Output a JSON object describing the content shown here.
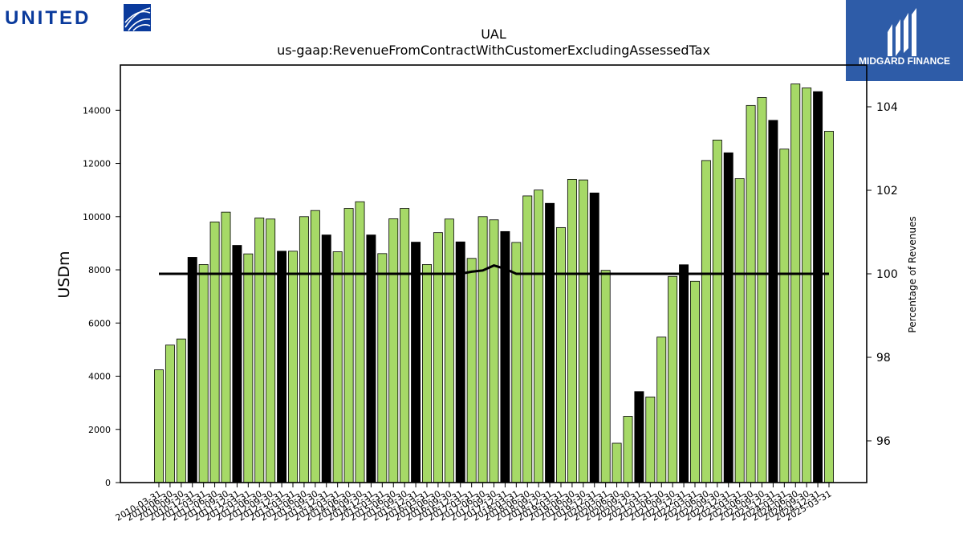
{
  "brand": {
    "left_logo_text": "UNITED",
    "right_logo_text": "MIDGARD FINANCE",
    "left_color": "#0a3a9c",
    "right_bg": "#2e5ca8"
  },
  "chart_data": {
    "type": "bar",
    "title": "UAL",
    "subtitle": "us-gaap:RevenueFromContractWithCustomerExcludingAssessedTax",
    "ylabel": "USDm",
    "y2label": "Percentage of Revenues",
    "ylim": [
      0,
      15700
    ],
    "y2lim": [
      95,
      105
    ],
    "yticks": [
      0,
      2000,
      4000,
      6000,
      8000,
      10000,
      12000,
      14000
    ],
    "y2ticks": [
      96,
      98,
      100,
      102,
      104
    ],
    "colors": {
      "quarter": "#a6d967",
      "annual": "#000000",
      "line": "#000000"
    },
    "categories": [
      "2010-03-31",
      "2010-06-30",
      "2010-09-30",
      "2010-12-31",
      "2011-03-31",
      "2011-06-30",
      "2011-09-30",
      "2011-12-31",
      "2012-03-31",
      "2012-06-30",
      "2012-09-30",
      "2012-12-31",
      "2013-03-31",
      "2013-06-30",
      "2013-09-30",
      "2013-12-31",
      "2014-03-31",
      "2014-06-30",
      "2014-09-30",
      "2014-12-31",
      "2015-03-31",
      "2015-06-30",
      "2015-09-30",
      "2015-12-31",
      "2016-03-31",
      "2016-06-30",
      "2016-09-30",
      "2016-12-31",
      "2017-03-31",
      "2017-06-30",
      "2017-09-30",
      "2017-12-31",
      "2018-03-31",
      "2018-06-30",
      "2018-09-30",
      "2018-12-31",
      "2019-03-31",
      "2019-06-30",
      "2019-09-30",
      "2019-12-31",
      "2020-03-31",
      "2020-06-30",
      "2020-09-30",
      "2020-12-31",
      "2021-03-31",
      "2021-06-30",
      "2021-09-30",
      "2021-12-31",
      "2022-03-31",
      "2022-06-30",
      "2022-09-30",
      "2022-12-31",
      "2023-03-31",
      "2023-06-30",
      "2023-09-30",
      "2023-12-31",
      "2024-03-31",
      "2024-06-30",
      "2024-09-30",
      "2024-12-31",
      "2025-03-31"
    ],
    "tick_labels": [
      "2010-03-31",
      "2010-06-30",
      "2010-09-30",
      "2010-12-31",
      "2011-03-31",
      "2011-06-30",
      "2011-09-30",
      "2011-12-31",
      "2012-03-31",
      "2012-06-30",
      "2012-09-30",
      "2012-12-31",
      "2013-03-31",
      "2013-06-30",
      "2013-09-30",
      "2013-12-31",
      "2014-03-31",
      "2014-06-30",
      "2014-09-30",
      "2014-12-31",
      "2015-03-31",
      "2015-06-30",
      "2015-09-30",
      "2015-12-31",
      "2016-03-31",
      "2016-06-30",
      "2016-09-30",
      "2016-12-31",
      "2017-03-31",
      "2017-06-30",
      "2017-09-30",
      "2017-12-31",
      "2018-03-31",
      "2018-06-30",
      "2018-09-30",
      "2018-12-31",
      "2019-03-31",
      "2019-06-30",
      "2019-09-30",
      "2019-12-31",
      "2020-03-31",
      "2020-06-30",
      "2020-09-30",
      "2020-12-31",
      "2021-03-31",
      "2021-06-30",
      "2021-09-30",
      "2021-12-31",
      "2022-03-31",
      "2022-06-30",
      "2022-09-30",
      "2022-12-31",
      "2023-03-31",
      "2023-06-30",
      "2023-09-30",
      "2023-12-31",
      "2024-03-31",
      "2024-06-30",
      "2024-09-30",
      "2024-12-31",
      "2025-03-31"
    ],
    "values": [
      4240,
      5170,
      5400,
      8470,
      8200,
      9800,
      10170,
      8920,
      8600,
      9950,
      9910,
      8700,
      8700,
      10000,
      10230,
      9310,
      8680,
      10310,
      10560,
      9310,
      8610,
      9920,
      10310,
      9040,
      8200,
      9400,
      9910,
      9050,
      8430,
      10000,
      9880,
      9440,
      9030,
      10780,
      11000,
      10500,
      9590,
      11400,
      11380,
      10890,
      7980,
      1480,
      2490,
      3420,
      3220,
      5470,
      7750,
      8190,
      7570,
      12110,
      12880,
      12400,
      11430,
      14180,
      14480,
      13620,
      12540,
      14990,
      14840,
      14700,
      13210
    ],
    "annual_flags": [
      false,
      false,
      false,
      true,
      false,
      false,
      false,
      true,
      false,
      false,
      false,
      true,
      false,
      false,
      false,
      true,
      false,
      false,
      false,
      true,
      false,
      false,
      false,
      true,
      false,
      false,
      false,
      true,
      false,
      false,
      false,
      true,
      false,
      false,
      false,
      true,
      false,
      false,
      false,
      true,
      false,
      false,
      false,
      true,
      false,
      false,
      false,
      true,
      false,
      false,
      false,
      true,
      false,
      false,
      false,
      true,
      false,
      false,
      false,
      true,
      false
    ],
    "pct_series": {
      "values": [
        100,
        100,
        100,
        100,
        100,
        100,
        100,
        100,
        100,
        100,
        100,
        100,
        100,
        100,
        100,
        100,
        100,
        100,
        100,
        100,
        100,
        100,
        100,
        100,
        100,
        100,
        100,
        100,
        100,
        100,
        100,
        100,
        100,
        100,
        100,
        100,
        100,
        100,
        100,
        100,
        100,
        100,
        100,
        100,
        100,
        100,
        100,
        100,
        100,
        100,
        100,
        100,
        100,
        100,
        100,
        100,
        100,
        100,
        100,
        100,
        100
      ],
      "overrides": {
        "28": 100.05,
        "29": 100.08,
        "30": 100.2,
        "31": 100.12,
        "32": 100.0
      }
    }
  }
}
